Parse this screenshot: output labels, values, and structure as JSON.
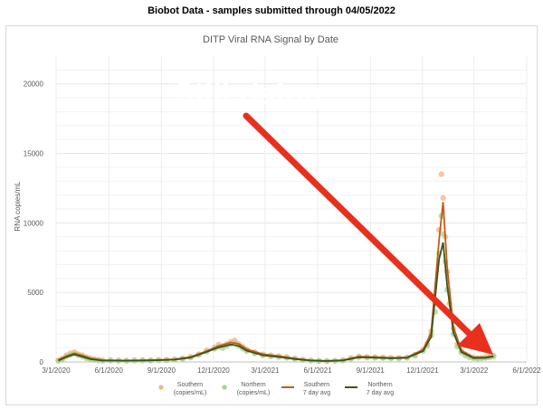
{
  "header": {
    "title": "Biobot Data - samples submitted through 04/05/2022"
  },
  "annotation": {
    "text": "Still rising",
    "color": "#e8301c"
  },
  "chart_data": {
    "type": "scatter",
    "title": "DITP Viral RNA Signal by Date",
    "xlabel": "",
    "ylabel": "RNA copies/mL",
    "ylim": [
      0,
      22000
    ],
    "xlim": [
      "2020-03-01",
      "2022-06-01"
    ],
    "x_ticks": [
      "3/1/2020",
      "6/1/2020",
      "9/1/2020",
      "12/1/2020",
      "3/1/2021",
      "6/1/2021",
      "9/1/2021",
      "12/1/2021",
      "3/1/2022",
      "6/1/2022"
    ],
    "y_ticks": [
      "0",
      "5000",
      "10000",
      "15000",
      "20000"
    ],
    "grid": true,
    "legend_position": "bottom",
    "colors": {
      "southern_points": "#f4b183",
      "northern_points": "#a9d18e",
      "southern_avg": "#c55a11",
      "northern_avg": "#375623"
    },
    "legend": [
      {
        "line1": "Southern",
        "line2": "(copies/mL)"
      },
      {
        "line1": "Northern",
        "line2": "(copies/mL)"
      },
      {
        "line1": "Southern",
        "line2": "7 day avg"
      },
      {
        "line1": "Northern",
        "line2": "7 day avg"
      }
    ],
    "series": [
      {
        "name": "Southern (copies/mL)",
        "points": [
          [
            "2020-03-05",
            120
          ],
          [
            "2020-03-12",
            250
          ],
          [
            "2020-03-19",
            480
          ],
          [
            "2020-03-26",
            620
          ],
          [
            "2020-04-02",
            700
          ],
          [
            "2020-04-09",
            560
          ],
          [
            "2020-04-16",
            480
          ],
          [
            "2020-04-23",
            350
          ],
          [
            "2020-04-30",
            260
          ],
          [
            "2020-05-07",
            200
          ],
          [
            "2020-05-14",
            160
          ],
          [
            "2020-05-21",
            120
          ],
          [
            "2020-06-04",
            130
          ],
          [
            "2020-06-18",
            110
          ],
          [
            "2020-07-02",
            100
          ],
          [
            "2020-07-16",
            120
          ],
          [
            "2020-07-30",
            140
          ],
          [
            "2020-08-13",
            130
          ],
          [
            "2020-08-27",
            150
          ],
          [
            "2020-09-10",
            160
          ],
          [
            "2020-09-24",
            200
          ],
          [
            "2020-10-08",
            260
          ],
          [
            "2020-10-22",
            380
          ],
          [
            "2020-11-05",
            560
          ],
          [
            "2020-11-19",
            820
          ],
          [
            "2020-12-03",
            1050
          ],
          [
            "2020-12-10",
            1250
          ],
          [
            "2020-12-17",
            1150
          ],
          [
            "2020-12-24",
            1300
          ],
          [
            "2020-12-31",
            1450
          ],
          [
            "2021-01-07",
            1550
          ],
          [
            "2021-01-14",
            1300
          ],
          [
            "2021-01-21",
            1100
          ],
          [
            "2021-01-28",
            900
          ],
          [
            "2021-02-11",
            700
          ],
          [
            "2021-02-25",
            550
          ],
          [
            "2021-03-11",
            480
          ],
          [
            "2021-03-25",
            420
          ],
          [
            "2021-04-08",
            350
          ],
          [
            "2021-04-22",
            250
          ],
          [
            "2021-05-06",
            160
          ],
          [
            "2021-05-20",
            110
          ],
          [
            "2021-06-03",
            80
          ],
          [
            "2021-06-17",
            70
          ],
          [
            "2021-07-01",
            80
          ],
          [
            "2021-07-15",
            130
          ],
          [
            "2021-07-29",
            280
          ],
          [
            "2021-08-12",
            400
          ],
          [
            "2021-08-26",
            360
          ],
          [
            "2021-09-09",
            350
          ],
          [
            "2021-09-23",
            330
          ],
          [
            "2021-10-07",
            300
          ],
          [
            "2021-10-21",
            290
          ],
          [
            "2021-11-04",
            340
          ],
          [
            "2021-11-18",
            520
          ],
          [
            "2021-12-02",
            900
          ],
          [
            "2021-12-09",
            1300
          ],
          [
            "2021-12-16",
            2200
          ],
          [
            "2021-12-23",
            4200
          ],
          [
            "2021-12-30",
            9500
          ],
          [
            "2022-01-03",
            13500
          ],
          [
            "2022-01-06",
            11800
          ],
          [
            "2022-01-10",
            9000
          ],
          [
            "2022-01-13",
            6500
          ],
          [
            "2022-01-17",
            4200
          ],
          [
            "2022-01-24",
            2400
          ],
          [
            "2022-01-31",
            1300
          ],
          [
            "2022-02-07",
            800
          ],
          [
            "2022-02-14",
            550
          ],
          [
            "2022-02-21",
            400
          ],
          [
            "2022-02-28",
            320
          ],
          [
            "2022-03-07",
            280
          ],
          [
            "2022-03-14",
            300
          ],
          [
            "2022-03-21",
            330
          ],
          [
            "2022-03-28",
            380
          ],
          [
            "2022-04-04",
            450
          ]
        ]
      },
      {
        "name": "Northern (copies/mL)",
        "points": [
          [
            "2020-03-05",
            80
          ],
          [
            "2020-03-12",
            200
          ],
          [
            "2020-03-19",
            380
          ],
          [
            "2020-03-26",
            520
          ],
          [
            "2020-04-02",
            600
          ],
          [
            "2020-04-09",
            480
          ],
          [
            "2020-04-16",
            380
          ],
          [
            "2020-04-23",
            270
          ],
          [
            "2020-04-30",
            200
          ],
          [
            "2020-05-07",
            150
          ],
          [
            "2020-05-14",
            120
          ],
          [
            "2020-05-21",
            90
          ],
          [
            "2020-06-04",
            100
          ],
          [
            "2020-06-18",
            90
          ],
          [
            "2020-07-02",
            85
          ],
          [
            "2020-07-16",
            100
          ],
          [
            "2020-07-30",
            110
          ],
          [
            "2020-08-13",
            110
          ],
          [
            "2020-08-27",
            120
          ],
          [
            "2020-09-10",
            130
          ],
          [
            "2020-09-24",
            160
          ],
          [
            "2020-10-08",
            220
          ],
          [
            "2020-10-22",
            320
          ],
          [
            "2020-11-05",
            500
          ],
          [
            "2020-11-19",
            750
          ],
          [
            "2020-12-03",
            950
          ],
          [
            "2020-12-10",
            1100
          ],
          [
            "2020-12-17",
            1000
          ],
          [
            "2020-12-24",
            1150
          ],
          [
            "2020-12-31",
            1300
          ],
          [
            "2021-01-07",
            1350
          ],
          [
            "2021-01-14",
            1150
          ],
          [
            "2021-01-21",
            950
          ],
          [
            "2021-01-28",
            780
          ],
          [
            "2021-02-11",
            600
          ],
          [
            "2021-02-25",
            470
          ],
          [
            "2021-03-11",
            400
          ],
          [
            "2021-03-25",
            360
          ],
          [
            "2021-04-08",
            300
          ],
          [
            "2021-04-22",
            210
          ],
          [
            "2021-05-06",
            140
          ],
          [
            "2021-05-20",
            95
          ],
          [
            "2021-06-03",
            70
          ],
          [
            "2021-06-17",
            60
          ],
          [
            "2021-07-01",
            70
          ],
          [
            "2021-07-15",
            110
          ],
          [
            "2021-07-29",
            230
          ],
          [
            "2021-08-12",
            340
          ],
          [
            "2021-08-26",
            320
          ],
          [
            "2021-09-09",
            300
          ],
          [
            "2021-09-23",
            280
          ],
          [
            "2021-10-07",
            260
          ],
          [
            "2021-10-21",
            250
          ],
          [
            "2021-11-04",
            290
          ],
          [
            "2021-11-18",
            450
          ],
          [
            "2021-12-02",
            800
          ],
          [
            "2021-12-09",
            1150
          ],
          [
            "2021-12-16",
            1900
          ],
          [
            "2021-12-23",
            3600
          ],
          [
            "2021-12-30",
            7800
          ],
          [
            "2022-01-03",
            10500
          ],
          [
            "2022-01-06",
            9200
          ],
          [
            "2022-01-10",
            7200
          ],
          [
            "2022-01-13",
            5200
          ],
          [
            "2022-01-17",
            3500
          ],
          [
            "2022-01-24",
            2000
          ],
          [
            "2022-01-31",
            1100
          ],
          [
            "2022-02-07",
            680
          ],
          [
            "2022-02-14",
            460
          ],
          [
            "2022-02-21",
            340
          ],
          [
            "2022-02-28",
            270
          ],
          [
            "2022-03-07",
            240
          ],
          [
            "2022-03-14",
            260
          ],
          [
            "2022-03-21",
            290
          ],
          [
            "2022-03-28",
            330
          ],
          [
            "2022-04-04",
            400
          ]
        ]
      },
      {
        "name": "Southern 7 day avg",
        "points": [
          [
            "2020-03-05",
            150
          ],
          [
            "2020-03-19",
            420
          ],
          [
            "2020-04-02",
            620
          ],
          [
            "2020-04-16",
            460
          ],
          [
            "2020-04-30",
            260
          ],
          [
            "2020-05-21",
            130
          ],
          [
            "2020-06-04",
            120
          ],
          [
            "2020-07-02",
            105
          ],
          [
            "2020-08-13",
            130
          ],
          [
            "2020-09-24",
            190
          ],
          [
            "2020-10-22",
            360
          ],
          [
            "2020-11-19",
            780
          ],
          [
            "2020-12-10",
            1150
          ],
          [
            "2020-12-31",
            1400
          ],
          [
            "2021-01-14",
            1300
          ],
          [
            "2021-01-28",
            920
          ],
          [
            "2021-02-25",
            560
          ],
          [
            "2021-03-25",
            420
          ],
          [
            "2021-04-22",
            250
          ],
          [
            "2021-05-20",
            120
          ],
          [
            "2021-06-17",
            75
          ],
          [
            "2021-07-15",
            130
          ],
          [
            "2021-08-12",
            390
          ],
          [
            "2021-09-09",
            350
          ],
          [
            "2021-10-07",
            300
          ],
          [
            "2021-11-04",
            330
          ],
          [
            "2021-12-02",
            880
          ],
          [
            "2021-12-16",
            2100
          ],
          [
            "2021-12-30",
            8800
          ],
          [
            "2022-01-06",
            11500
          ],
          [
            "2022-01-13",
            6800
          ],
          [
            "2022-01-24",
            2500
          ],
          [
            "2022-02-07",
            820
          ],
          [
            "2022-02-28",
            330
          ],
          [
            "2022-03-21",
            330
          ],
          [
            "2022-04-04",
            430
          ]
        ]
      },
      {
        "name": "Northern 7 day avg",
        "points": [
          [
            "2020-03-05",
            100
          ],
          [
            "2020-03-19",
            360
          ],
          [
            "2020-04-02",
            540
          ],
          [
            "2020-04-16",
            380
          ],
          [
            "2020-04-30",
            200
          ],
          [
            "2020-05-21",
            100
          ],
          [
            "2020-06-04",
            95
          ],
          [
            "2020-07-02",
            90
          ],
          [
            "2020-08-13",
            110
          ],
          [
            "2020-09-24",
            160
          ],
          [
            "2020-10-22",
            310
          ],
          [
            "2020-11-19",
            720
          ],
          [
            "2020-12-10",
            1050
          ],
          [
            "2020-12-31",
            1250
          ],
          [
            "2021-01-14",
            1150
          ],
          [
            "2021-01-28",
            800
          ],
          [
            "2021-02-25",
            480
          ],
          [
            "2021-03-25",
            360
          ],
          [
            "2021-04-22",
            210
          ],
          [
            "2021-05-20",
            100
          ],
          [
            "2021-06-17",
            65
          ],
          [
            "2021-07-15",
            110
          ],
          [
            "2021-08-12",
            330
          ],
          [
            "2021-09-09",
            300
          ],
          [
            "2021-10-07",
            260
          ],
          [
            "2021-11-04",
            290
          ],
          [
            "2021-12-02",
            780
          ],
          [
            "2021-12-16",
            1800
          ],
          [
            "2021-12-30",
            7400
          ],
          [
            "2022-01-06",
            8600
          ],
          [
            "2022-01-13",
            5500
          ],
          [
            "2022-01-24",
            2100
          ],
          [
            "2022-02-07",
            700
          ],
          [
            "2022-02-28",
            280
          ],
          [
            "2022-03-21",
            290
          ],
          [
            "2022-04-04",
            390
          ]
        ]
      }
    ]
  }
}
